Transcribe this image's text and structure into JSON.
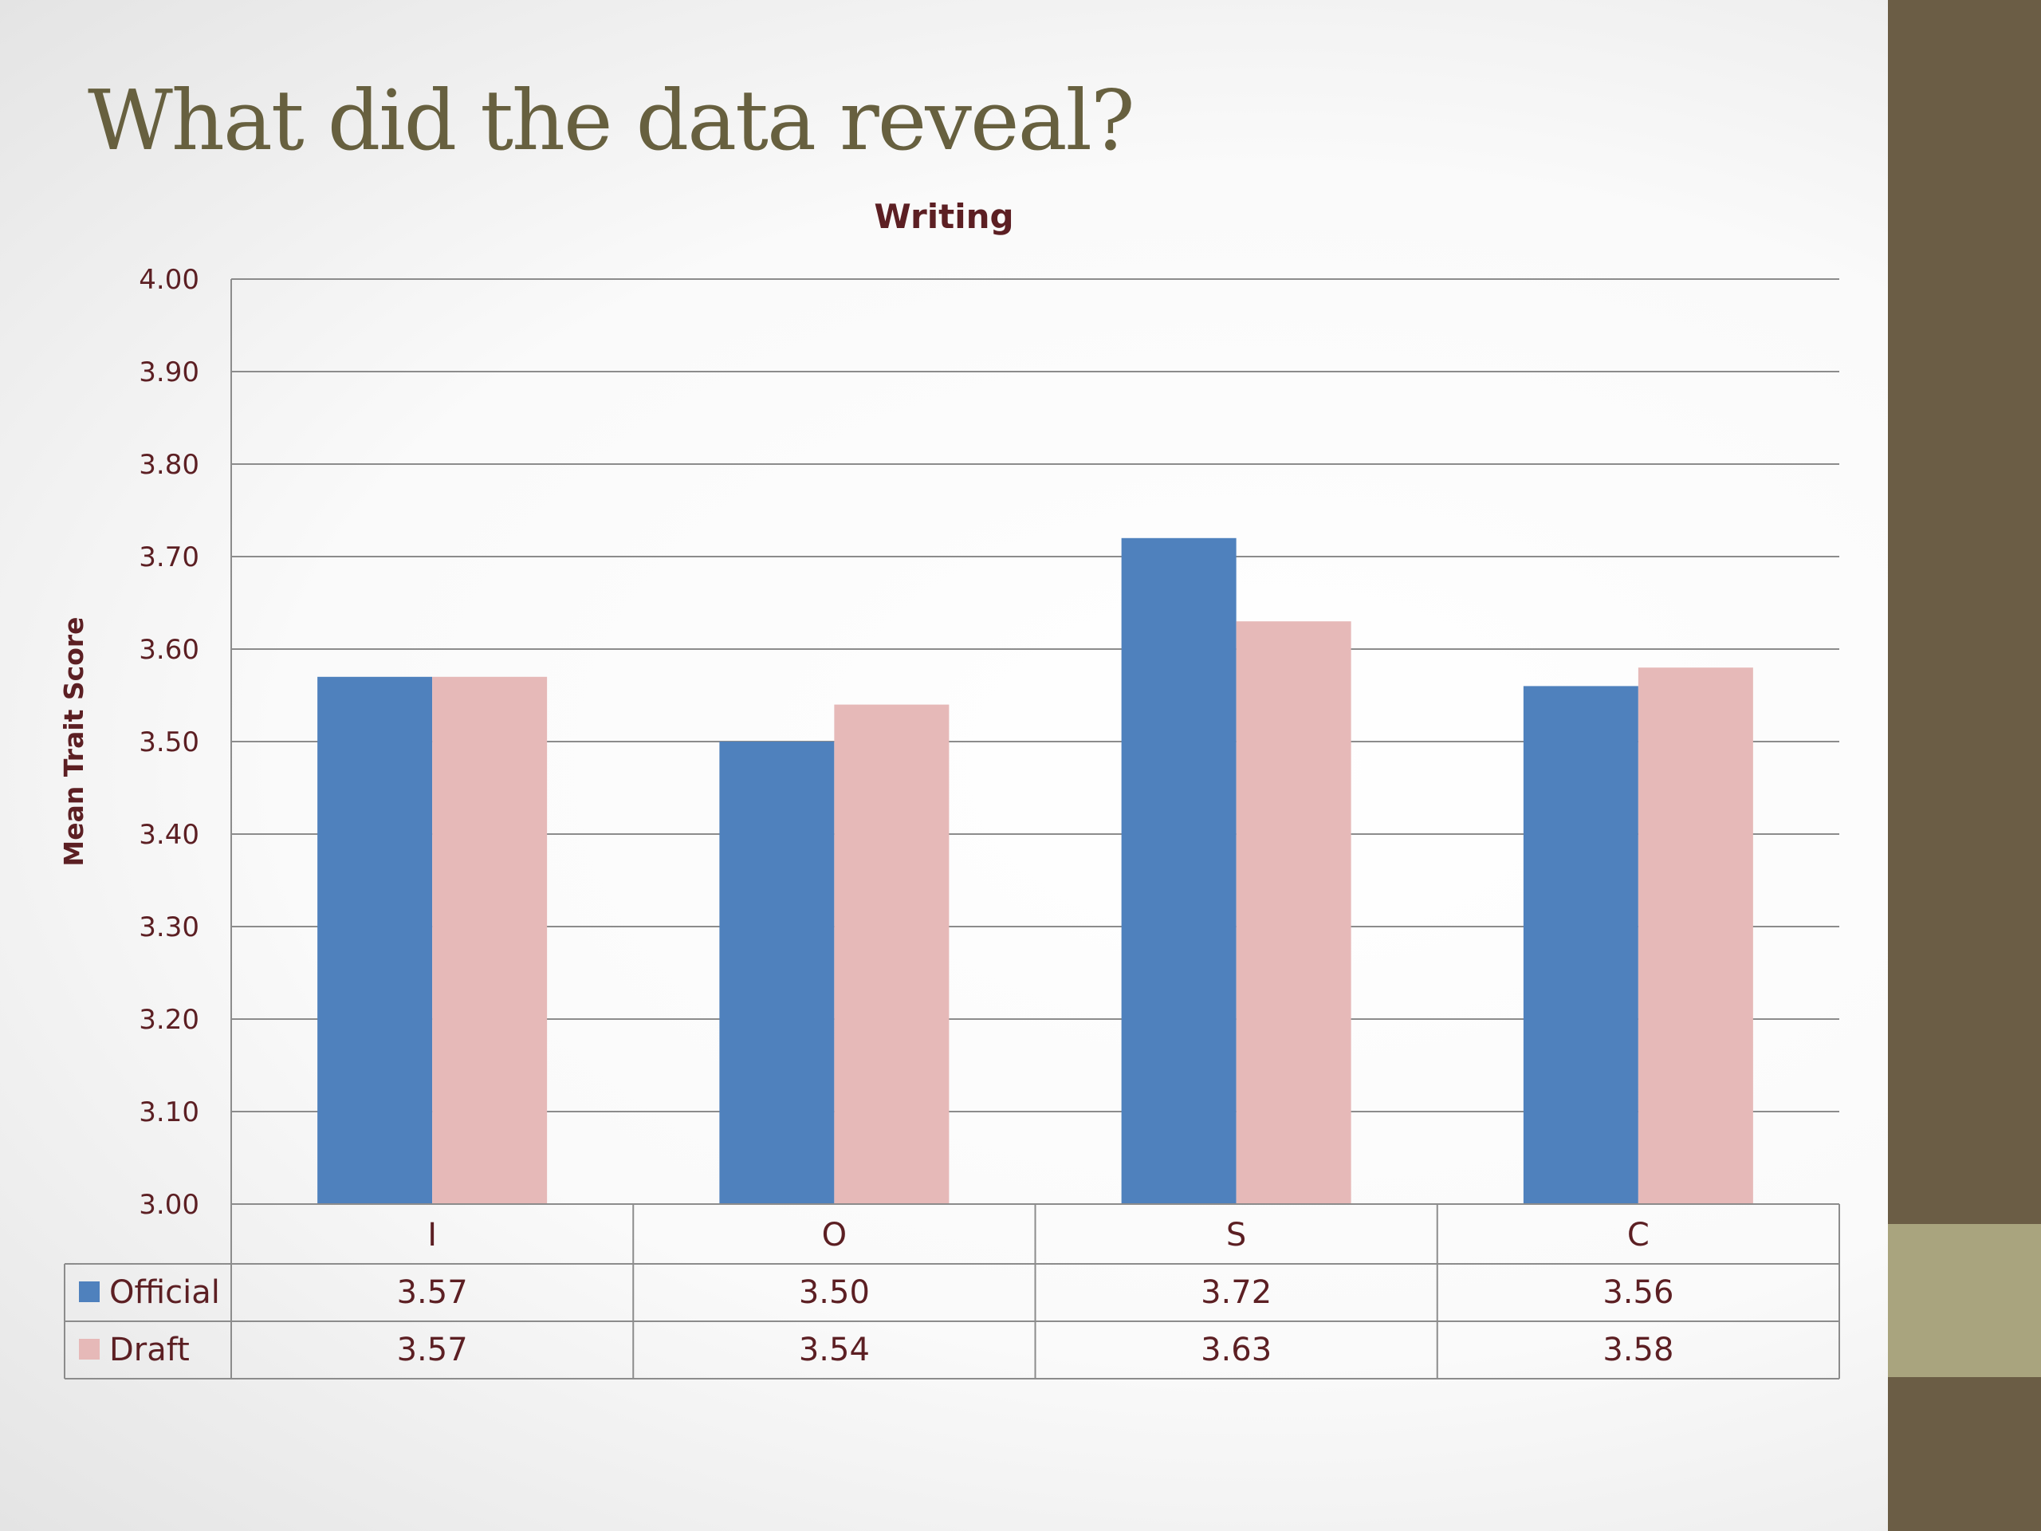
{
  "slide": {
    "title": "What did the data reveal?"
  },
  "chart_data": {
    "type": "bar",
    "title": "Writing",
    "ylabel": "Mean Trait Score",
    "xlabel": "",
    "ylim": [
      3.0,
      4.0
    ],
    "yticks": [
      "3.00",
      "3.10",
      "3.20",
      "3.30",
      "3.40",
      "3.50",
      "3.60",
      "3.70",
      "3.80",
      "3.90",
      "4.00"
    ],
    "categories": [
      "I",
      "O",
      "S",
      "C"
    ],
    "series": [
      {
        "name": "Official",
        "color": "#4f81bd",
        "values": [
          3.57,
          3.5,
          3.72,
          3.56
        ],
        "labels": [
          "3.57",
          "3.50",
          "3.72",
          "3.56"
        ]
      },
      {
        "name": "Draft",
        "color": "#e6b9b8",
        "values": [
          3.57,
          3.54,
          3.63,
          3.58
        ],
        "labels": [
          "3.57",
          "3.54",
          "3.63",
          "3.58"
        ]
      }
    ],
    "grid": true,
    "legend": "data-table"
  },
  "colors": {
    "title": "#67603f",
    "chart_text": "#5c1f23",
    "sidebar": "#6b5d45",
    "sidebar_accent": "#a9a47e"
  }
}
